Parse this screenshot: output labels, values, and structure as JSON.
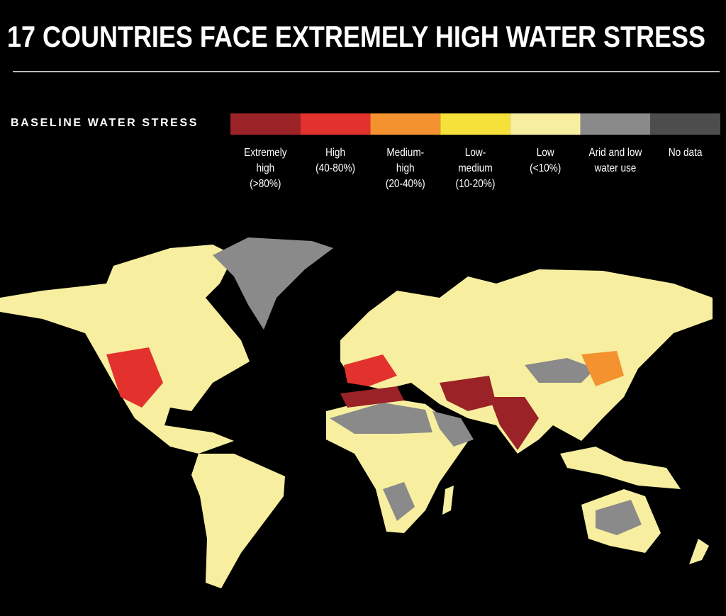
{
  "title": "17 COUNTRIES FACE EXTREMELY HIGH WATER STRESS",
  "legend": {
    "title": "BASELINE WATER STRESS",
    "items": [
      {
        "lines": [
          "Extremely",
          "high",
          "(>80%)"
        ],
        "color": "#9b2226"
      },
      {
        "lines": [
          "High",
          "(40-80%)"
        ],
        "color": "#e3312d"
      },
      {
        "lines": [
          "Medium-",
          "high",
          "(20-40%)"
        ],
        "color": "#f3922f"
      },
      {
        "lines": [
          "Low-",
          "medium",
          "(10-20%)"
        ],
        "color": "#f6e13a"
      },
      {
        "lines": [
          "Low",
          "(<10%)"
        ],
        "color": "#f7ef9f"
      },
      {
        "lines": [
          "Arid and low",
          "water use"
        ],
        "color": "#8a8a8a"
      },
      {
        "lines": [
          "No data"
        ],
        "color": "#4d4d4d"
      }
    ]
  }
}
